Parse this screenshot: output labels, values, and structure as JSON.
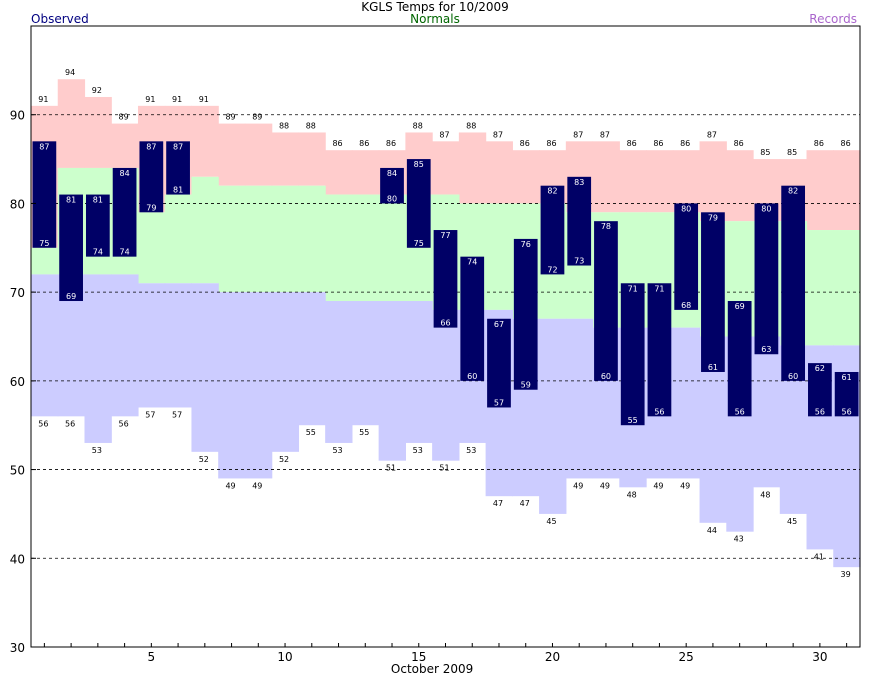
{
  "chart_data": {
    "type": "bar",
    "title": "KGLS Temps for 10/2009",
    "xlabel": "October 2009",
    "ylabel": "",
    "legend": [
      "Observed",
      "Normals",
      "Records"
    ],
    "ylim": [
      30,
      100
    ],
    "y_ticks": [
      30,
      40,
      50,
      60,
      70,
      80,
      90
    ],
    "x_ticks": [
      5,
      10,
      15,
      20,
      25,
      30
    ],
    "days": [
      1,
      2,
      3,
      4,
      5,
      6,
      7,
      8,
      9,
      10,
      11,
      12,
      13,
      14,
      15,
      16,
      17,
      18,
      19,
      20,
      21,
      22,
      23,
      24,
      25,
      26,
      27,
      28,
      29,
      30,
      31
    ],
    "series": [
      {
        "name": "Observed",
        "high": [
          87,
          81,
          81,
          84,
          87,
          87,
          null,
          null,
          null,
          null,
          null,
          null,
          null,
          84,
          85,
          77,
          74,
          67,
          76,
          82,
          83,
          78,
          71,
          71,
          80,
          79,
          69,
          80,
          82,
          62,
          61
        ],
        "low": [
          75,
          69,
          74,
          74,
          79,
          81,
          null,
          null,
          null,
          null,
          null,
          null,
          null,
          80,
          75,
          66,
          60,
          57,
          59,
          72,
          73,
          60,
          55,
          56,
          68,
          61,
          56,
          63,
          60,
          56,
          56
        ]
      },
      {
        "name": "Normals",
        "high": [
          75,
          84,
          84,
          84,
          79,
          81,
          83,
          82,
          82,
          82,
          82,
          81,
          81,
          81,
          81,
          81,
          80,
          80,
          80,
          80,
          79,
          79,
          79,
          79,
          79,
          78,
          78,
          78,
          78,
          77,
          77
        ],
        "low": [
          72,
          72,
          72,
          72,
          71,
          71,
          71,
          70,
          70,
          70,
          70,
          69,
          69,
          69,
          69,
          68,
          68,
          68,
          67,
          67,
          67,
          66,
          66,
          66,
          66,
          65,
          65,
          65,
          64,
          64,
          64
        ]
      },
      {
        "name": "Records",
        "high": [
          91,
          94,
          92,
          89,
          91,
          91,
          91,
          89,
          89,
          88,
          88,
          86,
          86,
          86,
          88,
          87,
          88,
          87,
          86,
          86,
          87,
          87,
          86,
          86,
          86,
          87,
          86,
          85,
          85,
          86,
          86
        ],
        "low": [
          56,
          56,
          53,
          56,
          57,
          57,
          52,
          49,
          49,
          52,
          55,
          53,
          55,
          51,
          53,
          51,
          53,
          47,
          47,
          45,
          49,
          49,
          48,
          49,
          49,
          44,
          43,
          48,
          45,
          41,
          39
        ]
      }
    ],
    "grid": "dashed horizontal",
    "colors": {
      "observed": "#000066",
      "normals": "#ccffcc",
      "record_high": "#ffcccc",
      "record_low": "#ccccff",
      "frame": "#000000"
    }
  }
}
